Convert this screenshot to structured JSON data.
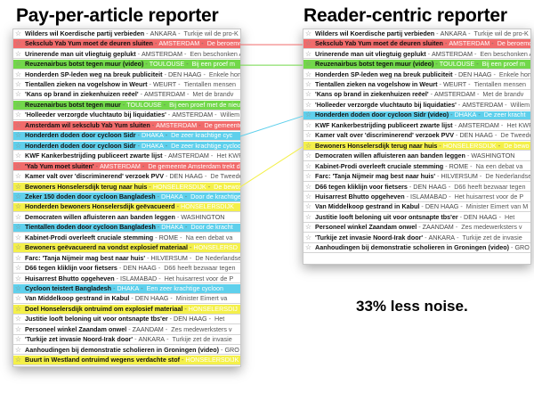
{
  "titles": {
    "left": "Pay-per-article reporter",
    "right": "Reader-centric reporter",
    "tagline": "33% less noise."
  },
  "colors": {
    "red": "#f16b6b",
    "green": "#72d84a",
    "blue": "#5fd0ec",
    "yellow": "#f4f04a",
    "gray": "#dcdcdc",
    "none": "#ffffff"
  },
  "left_items": [
    {
      "headline": "Wilders wil Koerdische partij verbieden",
      "source": "ANKARA",
      "summary": "Turkije wil de pro-K",
      "color": "none"
    },
    {
      "headline": "Seksclub Yab Yum moet de deuren sluiten",
      "source": "AMSTERDAM",
      "summary": "De beroemde",
      "color": "red"
    },
    {
      "headline": "Urinerende man uit vliegtuig geplukt",
      "source": "AMSTERDAM",
      "summary": "Een beschonken A",
      "color": "none"
    },
    {
      "headline": "Reuzenairbus botst tegen muur (video)",
      "source": "TOULOUSE",
      "summary": "Bij een proef m",
      "color": "green"
    },
    {
      "headline": "Honderden SP-leden weg na breuk publiciteit",
      "source": "DEN HAAG",
      "summary": "Enkele hond",
      "color": "none"
    },
    {
      "headline": "Tientallen zieken na vogelshow in Weurt",
      "source": "WEURT",
      "summary": "Tientallen mensen",
      "color": "none"
    },
    {
      "headline": "'Kans op brand in ziekenhuizen reëel'",
      "source": "AMSTERDAM",
      "summary": "Met de brandv",
      "color": "none"
    },
    {
      "headline": "Reuzenairbus botst tegen muur",
      "source": "TOULOUSE",
      "summary": "Bij een proef met de nieuwe",
      "color": "green"
    },
    {
      "headline": "'Holleeder verzorgde vluchtauto bij liquidaties'",
      "source": "AMSTERDAM",
      "summary": "Willem Holl",
      "color": "none"
    },
    {
      "headline": "Amsterdam wil seksclub Yab Yum sluiten",
      "source": "AMSTERDAM",
      "summary": "De gemeente",
      "color": "red"
    },
    {
      "headline": "Honderden doden door cycloon Sidr",
      "source": "DHAKA",
      "summary": "De zeer krachtige cyc",
      "color": "blue"
    },
    {
      "headline": "Honderden doden door cycloon Sidr",
      "source": "DHAKA",
      "summary": "De zeer krachtige cycloon",
      "color": "blue"
    },
    {
      "headline": "KWF Kankerbestrijding publiceert zwarte lijst",
      "source": "AMSTERDAM",
      "summary": "Het KWF",
      "color": "none"
    },
    {
      "headline": "'Yab Yum moet sluiten'",
      "source": "AMSTERDAM",
      "summary": "De gemeente Amsterdam trekt de",
      "color": "red"
    },
    {
      "headline": "Kamer valt over 'discriminerend' verzoek PVV",
      "source": "DEN HAAG",
      "summary": "De Tweede",
      "color": "none"
    },
    {
      "headline": "Bewoners Honselersdijk terug naar huis",
      "source": "HONSELERSDIJK",
      "summary": "De bewoners",
      "color": "yellow"
    },
    {
      "headline": "Zeker 150 doden door cycloon Bangladesh",
      "source": "DHAKA",
      "summary": "Door de krachtige",
      "color": "blue"
    },
    {
      "headline": "Honderden bewoners Honselersdijk geëvacueerd",
      "source": "HONSELERSDIJK",
      "summary": "",
      "color": "yellow"
    },
    {
      "headline": "Democraten willen afluisteren aan banden leggen",
      "source": "WASHINGTON",
      "summary": "",
      "color": "none"
    },
    {
      "headline": "Tientallen doden door cycloon Bangladesh",
      "source": "DHAKA",
      "summary": "Door de kracht",
      "color": "blue"
    },
    {
      "headline": "Kabinet-Prodi overleeft cruciale stemming",
      "source": "ROME",
      "summary": "Na een debat va",
      "color": "none"
    },
    {
      "headline": "Bewoners geëvacueerd na vondst explosief materiaal",
      "source": "HONSELERSD",
      "summary": "",
      "color": "yellow"
    },
    {
      "headline": "Farc: 'Tanja Nijmeir mag best naar huis'",
      "source": "HILVERSUM",
      "summary": "De Nederlandse",
      "color": "none"
    },
    {
      "headline": "D66 tegen kliklijn voor fietsers",
      "source": "DEN HAAG",
      "summary": "D66 heeft bezwaar tegen",
      "color": "none"
    },
    {
      "headline": "Huisarrest Bhutto opgeheven",
      "source": "ISLAMABAD",
      "summary": "Het huisarrest voor de P",
      "color": "none"
    },
    {
      "headline": "Cycloon teistert Bangladesh",
      "source": "DHAKA",
      "summary": "Een zeer krachtige cycloon",
      "color": "blue"
    },
    {
      "headline": "Van Middelkoop gestrand in Kabul",
      "source": "DEN HAAG",
      "summary": "Minister Eimert va",
      "color": "none"
    },
    {
      "headline": "Doel Honselersdijk ontruimd om explosief materiaal",
      "source": "HONSELERSDIJ",
      "summary": "",
      "color": "yellow"
    },
    {
      "headline": "Justitie looft beloning uit voor ontsnapte tbs'er",
      "source": "DEN HAAG",
      "summary": "Het",
      "color": "none"
    },
    {
      "headline": "Personeel winkel Zaandam onwel",
      "source": "ZAANDAM",
      "summary": "Zes medewerksters v",
      "color": "none"
    },
    {
      "headline": "'Turkije zet invasie Noord-Irak door'",
      "source": "ANKARA",
      "summary": "Turkije zet de invasie",
      "color": "none"
    },
    {
      "headline": "Aanhoudingen bij demonstratie scholieren in Groningen (video)",
      "source": "GRO",
      "summary": "",
      "color": "none"
    },
    {
      "headline": "Buurt in Westland ontruimd wegens verdachte stof",
      "source": "HONSELERSDIJK",
      "summary": "",
      "color": "yellow"
    }
  ],
  "right_items": [
    {
      "headline": "Wilders wil Koerdische partij verbieden",
      "source": "ANKARA",
      "summary": "Turkije wil de pro-K",
      "color": "none"
    },
    {
      "headline": "Seksclub Yab Yum moet de deuren sluiten",
      "source": "AMSTERDAM",
      "summary": "De beroemde",
      "color": "red"
    },
    {
      "headline": "Urinerende man uit vliegtuig geplukt",
      "source": "AMSTERDAM",
      "summary": "Een beschonken A",
      "color": "none"
    },
    {
      "headline": "Reuzenairbus botst tegen muur (video)",
      "source": "TOULOUSE",
      "summary": "Bij een proef m",
      "color": "green"
    },
    {
      "headline": "Honderden SP-leden weg na breuk publiciteit",
      "source": "DEN HAAG",
      "summary": "Enkele hond",
      "color": "none"
    },
    {
      "headline": "Tientallen zieken na vogelshow in Weurt",
      "source": "WEURT",
      "summary": "Tientallen mensen",
      "color": "none"
    },
    {
      "headline": "'Kans op brand in ziekenhuizen reëel'",
      "source": "AMSTERDAM",
      "summary": "Met de brandv",
      "color": "none"
    },
    {
      "headline": "'Holleeder verzorgde vluchtauto bij liquidaties'",
      "source": "AMSTERDAM",
      "summary": "Willem Holl",
      "color": "none"
    },
    {
      "headline": "Honderden doden door cycloon Sidr (video)",
      "source": "DHAKA",
      "summary": "De zeer kracht",
      "color": "blue"
    },
    {
      "headline": "KWF Kankerbestrijding publiceert zwarte lijst",
      "source": "AMSTERDAM",
      "summary": "Het KWF",
      "color": "none"
    },
    {
      "headline": "Kamer valt over 'discriminerend' verzoek PVV",
      "source": "DEN HAAG",
      "summary": "De Tweede",
      "color": "none"
    },
    {
      "headline": "Bewoners Honselersdijk terug naar huis",
      "source": "HONSELERSDIJK",
      "summary": "De bewo",
      "color": "yellow"
    },
    {
      "headline": "Democraten willen afluisteren aan banden leggen",
      "source": "WASHINGTON",
      "summary": "",
      "color": "none"
    },
    {
      "headline": "Kabinet-Prodi overleeft cruciale stemming",
      "source": "ROME",
      "summary": "Na een debat va",
      "color": "none"
    },
    {
      "headline": "Farc: 'Tanja Nijmeir mag best naar huis'",
      "source": "HILVERSUM",
      "summary": "De Nederlandse",
      "color": "none"
    },
    {
      "headline": "D66 tegen kliklijn voor fietsers",
      "source": "DEN HAAG",
      "summary": "D66 heeft bezwaar tegen",
      "color": "none"
    },
    {
      "headline": "Huisarrest Bhutto opgeheven",
      "source": "ISLAMABAD",
      "summary": "Het huisarrest voor de P",
      "color": "none"
    },
    {
      "headline": "Van Middelkoop gestrand in Kabul",
      "source": "DEN HAAG",
      "summary": "Minister Eimert van M",
      "color": "none"
    },
    {
      "headline": "Justitie looft beloning uit voor ontsnapte tbs'er",
      "source": "DEN HAAG",
      "summary": "Het",
      "color": "none"
    },
    {
      "headline": "Personeel winkel Zaandam onwel",
      "source": "ZAANDAM",
      "summary": "Zes medewerksters v",
      "color": "none"
    },
    {
      "headline": "'Turkije zet invasie Noord-Irak door'",
      "source": "ANKARA",
      "summary": "Turkije zet de invasie",
      "color": "none"
    },
    {
      "headline": "Aanhoudingen bij demonstratie scholieren in Groningen (video)",
      "source": "GRO",
      "summary": "",
      "color": "none"
    }
  ],
  "links": [
    {
      "from": 1,
      "to": 1,
      "color": "red"
    },
    {
      "from": 3,
      "to": 3,
      "color": "green"
    },
    {
      "from": 10,
      "to": 8,
      "color": "blue"
    },
    {
      "from": 15,
      "to": 11,
      "color": "yellow"
    }
  ]
}
